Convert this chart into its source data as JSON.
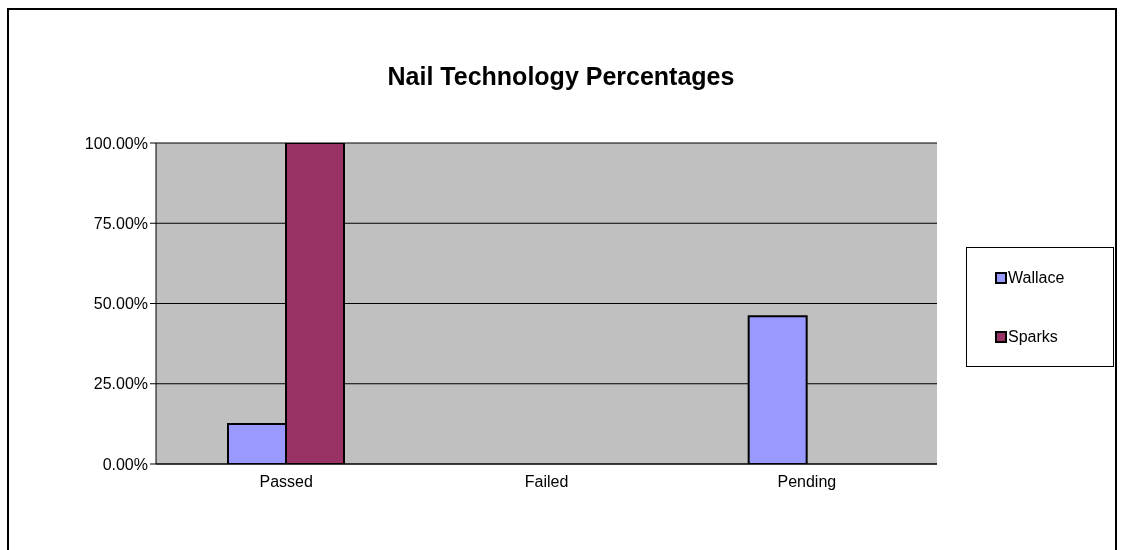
{
  "chart_data": {
    "type": "bar",
    "title": "Nail Technology Percentages",
    "categories": [
      "Passed",
      "Failed",
      "Pending"
    ],
    "series": [
      {
        "name": "Wallace",
        "color": "#9999ff",
        "values": [
          12.5,
          0,
          46
        ]
      },
      {
        "name": "Sparks",
        "color": "#993366",
        "values": [
          100,
          0,
          0
        ]
      }
    ],
    "ylim": [
      0,
      100
    ],
    "yticks": [
      {
        "value": 0,
        "label": "0.00%"
      },
      {
        "value": 25,
        "label": "25.00%"
      },
      {
        "value": 50,
        "label": "50.00%"
      },
      {
        "value": 75,
        "label": "75.00%"
      },
      {
        "value": 100,
        "label": "100.00%"
      }
    ],
    "grid": "y",
    "legend": "right"
  }
}
